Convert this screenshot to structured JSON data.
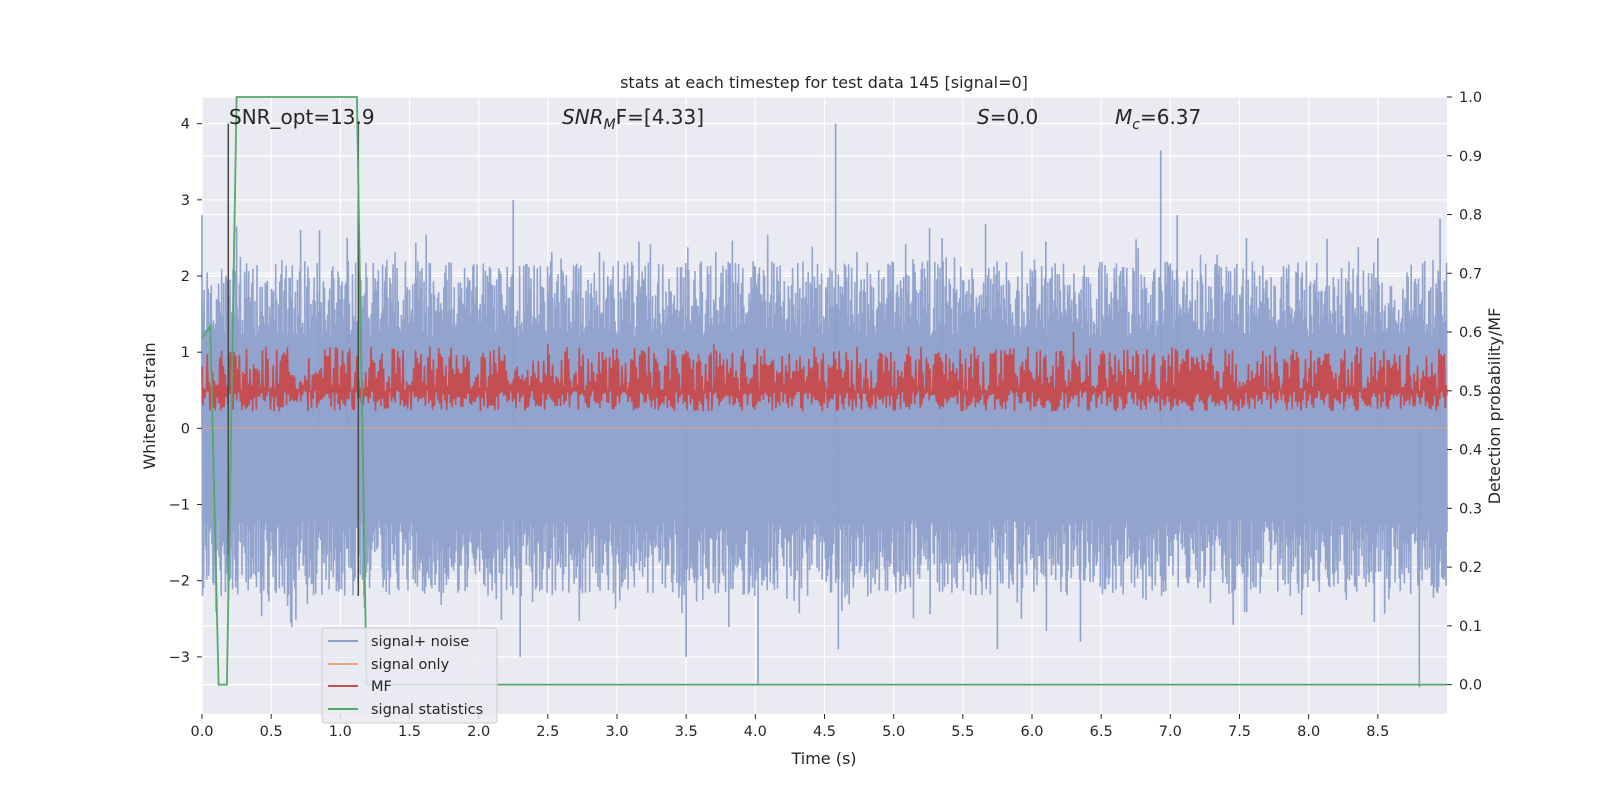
{
  "chart_data": {
    "type": "line",
    "title": "stats at each timestep for test data 145 [signal=0]",
    "xlabel": "Time (s)",
    "ylabel": "Whitened strain",
    "ylabel_right": "Detection probability/MF",
    "xlim": [
      0.0,
      9.0
    ],
    "ylim": [
      -3.75,
      4.35
    ],
    "ylim_right": [
      -0.05,
      1.0
    ],
    "x_ticks": [
      "0.0",
      "0.5",
      "1.0",
      "1.5",
      "2.0",
      "2.5",
      "3.0",
      "3.5",
      "4.0",
      "4.5",
      "5.0",
      "5.5",
      "6.0",
      "6.5",
      "7.0",
      "7.5",
      "8.0",
      "8.5"
    ],
    "y_ticks": [
      "4",
      "3",
      "2",
      "1",
      "0",
      "−1",
      "−2",
      "−3"
    ],
    "y_ticks_right": [
      "1.0",
      "0.9",
      "0.8",
      "0.7",
      "0.6",
      "0.5",
      "0.4",
      "0.3",
      "0.2",
      "0.1",
      "0.0"
    ],
    "grid": true,
    "legend_position": "lower-left",
    "annotations": {
      "snr_opt": "SNR_opt=13.9",
      "snr_mf_base": "SNR",
      "snr_mf_sub": "M",
      "snr_mf_rest": "F=[4.33]",
      "s_italic": "S",
      "s_rest": "=0.0",
      "mc_base": "M",
      "mc_sub": "c",
      "mc_rest": "=6.37"
    },
    "vertical_markers_x": [
      0.19,
      1.13
    ],
    "series": [
      {
        "name": "signal+ noise",
        "axis": "left",
        "color": "#8da0cb",
        "description_stats": {
          "mean": 0.0,
          "envelope_upper": [
            1.2,
            2.2
          ],
          "envelope_lower": [
            -1.2,
            -2.2
          ],
          "max": 4.0,
          "min": -3.45
        },
        "spikes": [
          [
            0.0,
            2.8
          ],
          [
            0.03,
            -1.6
          ],
          [
            0.25,
            2.65
          ],
          [
            0.85,
            2.6
          ],
          [
            1.05,
            2.5
          ],
          [
            1.17,
            -2.2
          ],
          [
            2.25,
            3.0
          ],
          [
            2.3,
            -3.0
          ],
          [
            3.5,
            -3.0
          ],
          [
            4.02,
            -3.35
          ],
          [
            4.58,
            4.0
          ],
          [
            4.6,
            -2.9
          ],
          [
            5.35,
            2.5
          ],
          [
            5.75,
            -2.9
          ],
          [
            6.1,
            2.45
          ],
          [
            6.35,
            -2.8
          ],
          [
            6.93,
            3.65
          ],
          [
            7.05,
            2.8
          ],
          [
            7.55,
            2.5
          ],
          [
            7.95,
            -2.45
          ],
          [
            8.5,
            2.5
          ],
          [
            8.8,
            -3.4
          ],
          [
            8.95,
            2.75
          ]
        ]
      },
      {
        "name": "signal only",
        "axis": "left",
        "color": "#e8a57c",
        "values_constant": 0.0
      },
      {
        "name": "MF",
        "axis": "right",
        "color": "#c44e52",
        "baseline": 0.5,
        "range": [
          0.465,
          0.6
        ],
        "peaks": [
          [
            2.5,
            0.58
          ],
          [
            3.7,
            0.58
          ],
          [
            6.3,
            0.6
          ]
        ]
      },
      {
        "name": "signal statistics",
        "axis": "right",
        "color": "#55a868",
        "x": [
          0.0,
          0.06,
          0.12,
          0.18,
          0.25,
          0.35,
          0.5,
          0.75,
          1.0,
          1.12,
          1.19,
          1.3,
          2.0,
          9.0
        ],
        "values": [
          0.59,
          0.61,
          0.0,
          0.0,
          1.0,
          1.0,
          1.0,
          1.0,
          1.0,
          1.0,
          0.0,
          0.0,
          0.0,
          0.0
        ]
      }
    ]
  }
}
